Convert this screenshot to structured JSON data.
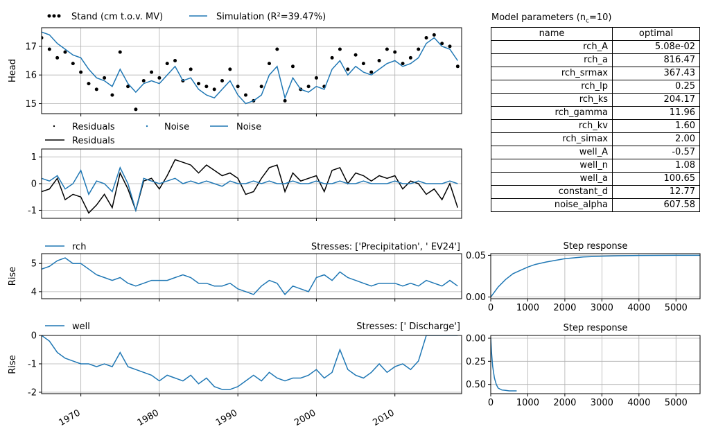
{
  "colors": {
    "simulation": "#1f77b4",
    "observed": "#000000",
    "grid": "#b0b0b0"
  },
  "chart_data": [
    {
      "id": "head",
      "type": "scatter+line",
      "ylabel": "Head",
      "ylim": [
        14.65,
        17.65
      ],
      "xlim": [
        1965.0,
        2018.5
      ],
      "yticks": [
        15,
        16,
        17
      ],
      "grid": true,
      "legend": [
        {
          "label": "Stand (cm t.o.v. MV)",
          "marker": "dots"
        },
        {
          "label": "Simulation (R²=39.47%)",
          "marker": "line"
        }
      ],
      "series": [
        {
          "name": "Stand (cm t.o.v. MV)",
          "kind": "points",
          "x": [
            1965,
            1966,
            1967,
            1968,
            1969,
            1970,
            1971,
            1972,
            1973,
            1974,
            1975,
            1976,
            1977,
            1978,
            1979,
            1980,
            1981,
            1982,
            1983,
            1984,
            1985,
            1986,
            1987,
            1988,
            1989,
            1990,
            1991,
            1992,
            1993,
            1994,
            1995,
            1996,
            1997,
            1998,
            1999,
            2000,
            2001,
            2002,
            2003,
            2004,
            2005,
            2006,
            2007,
            2008,
            2009,
            2010,
            2011,
            2012,
            2013,
            2014,
            2015,
            2016,
            2017,
            2018
          ],
          "y": [
            17.3,
            16.9,
            16.6,
            16.8,
            16.4,
            16.1,
            15.7,
            15.5,
            15.9,
            15.3,
            16.8,
            15.6,
            14.8,
            15.8,
            16.1,
            15.9,
            16.4,
            16.5,
            15.8,
            16.2,
            15.7,
            15.6,
            15.5,
            15.8,
            16.2,
            15.6,
            15.3,
            15.1,
            15.6,
            16.4,
            16.9,
            15.1,
            16.3,
            15.5,
            15.6,
            15.9,
            15.6,
            16.6,
            16.9,
            16.2,
            16.7,
            16.4,
            16.1,
            16.5,
            16.9,
            16.8,
            16.4,
            16.6,
            16.9,
            17.3,
            17.4,
            17.1,
            17.0,
            16.3
          ]
        },
        {
          "name": "Simulation",
          "kind": "line",
          "x": [
            1965,
            1966,
            1967,
            1968,
            1969,
            1970,
            1971,
            1972,
            1973,
            1974,
            1975,
            1976,
            1977,
            1978,
            1979,
            1980,
            1981,
            1982,
            1983,
            1984,
            1985,
            1986,
            1987,
            1988,
            1989,
            1990,
            1991,
            1992,
            1993,
            1994,
            1995,
            1996,
            1997,
            1998,
            1999,
            2000,
            2001,
            2002,
            2003,
            2004,
            2005,
            2006,
            2007,
            2008,
            2009,
            2010,
            2011,
            2012,
            2013,
            2014,
            2015,
            2016,
            2017,
            2018
          ],
          "y": [
            17.5,
            17.4,
            17.1,
            16.9,
            16.7,
            16.6,
            16.2,
            15.9,
            15.8,
            15.6,
            16.2,
            15.7,
            15.4,
            15.7,
            15.8,
            15.7,
            16.0,
            16.3,
            15.8,
            15.9,
            15.5,
            15.3,
            15.2,
            15.5,
            15.8,
            15.3,
            15.0,
            15.1,
            15.3,
            16.0,
            16.3,
            15.2,
            15.9,
            15.5,
            15.4,
            15.6,
            15.5,
            16.2,
            16.5,
            16.0,
            16.3,
            16.1,
            16.0,
            16.2,
            16.4,
            16.5,
            16.3,
            16.4,
            16.6,
            17.1,
            17.3,
            17.0,
            16.9,
            16.5
          ]
        }
      ]
    },
    {
      "id": "residuals",
      "type": "line",
      "ylim": [
        -1.3,
        1.3
      ],
      "xlim": [
        1965.0,
        2018.5
      ],
      "yticks": [
        -1,
        0,
        1
      ],
      "grid": true,
      "legend": [
        {
          "label": "Residuals",
          "marker": "dot",
          "color": "#000000"
        },
        {
          "label": "Noise",
          "marker": "dot",
          "color": "#1f77b4"
        },
        {
          "label": "Noise",
          "marker": "line",
          "color": "#1f77b4"
        },
        {
          "label": "Residuals",
          "marker": "line",
          "color": "#000000"
        }
      ],
      "series": [
        {
          "name": "Residuals",
          "x": [
            1965,
            1966,
            1967,
            1968,
            1969,
            1970,
            1971,
            1972,
            1973,
            1974,
            1975,
            1976,
            1977,
            1978,
            1979,
            1980,
            1981,
            1982,
            1983,
            1984,
            1985,
            1986,
            1987,
            1988,
            1989,
            1990,
            1991,
            1992,
            1993,
            1994,
            1995,
            1996,
            1997,
            1998,
            1999,
            2000,
            2001,
            2002,
            2003,
            2004,
            2005,
            2006,
            2007,
            2008,
            2009,
            2010,
            2011,
            2012,
            2013,
            2014,
            2015,
            2016,
            2017,
            2018
          ],
          "y": [
            -0.3,
            -0.2,
            0.2,
            -0.6,
            -0.4,
            -0.5,
            -1.1,
            -0.8,
            -0.4,
            -0.9,
            0.4,
            -0.2,
            -1.0,
            0.1,
            0.2,
            -0.2,
            0.3,
            0.9,
            0.8,
            0.7,
            0.4,
            0.7,
            0.5,
            0.3,
            0.4,
            0.2,
            -0.4,
            -0.3,
            0.2,
            0.6,
            0.7,
            -0.3,
            0.4,
            0.1,
            0.2,
            0.3,
            -0.3,
            0.5,
            0.6,
            0.0,
            0.4,
            0.3,
            0.1,
            0.3,
            0.2,
            0.3,
            -0.2,
            0.1,
            0.0,
            -0.4,
            -0.2,
            -0.6,
            0.0,
            -0.9
          ]
        },
        {
          "name": "Noise",
          "x": [
            1965,
            1966,
            1967,
            1968,
            1969,
            1970,
            1971,
            1972,
            1973,
            1974,
            1975,
            1976,
            1977,
            1978,
            1979,
            1980,
            1981,
            1982,
            1983,
            1984,
            1985,
            1986,
            1987,
            1988,
            1989,
            1990,
            1991,
            1992,
            1993,
            1994,
            1995,
            1996,
            1997,
            1998,
            1999,
            2000,
            2001,
            2002,
            2003,
            2004,
            2005,
            2006,
            2007,
            2008,
            2009,
            2010,
            2011,
            2012,
            2013,
            2014,
            2015,
            2016,
            2017,
            2018
          ],
          "y": [
            0.2,
            0.1,
            0.3,
            -0.2,
            0.0,
            0.5,
            -0.4,
            0.1,
            0.0,
            -0.3,
            0.6,
            0.0,
            -1.0,
            0.2,
            0.1,
            0.0,
            0.1,
            0.2,
            0.0,
            0.1,
            0.0,
            0.1,
            0.0,
            -0.1,
            0.1,
            0.0,
            0.0,
            0.1,
            0.0,
            0.1,
            0.0,
            0.0,
            0.1,
            0.0,
            0.0,
            0.1,
            0.0,
            0.0,
            0.1,
            0.0,
            0.0,
            0.1,
            0.0,
            0.0,
            0.0,
            0.1,
            0.0,
            0.0,
            0.1,
            0.0,
            0.0,
            0.0,
            0.1,
            0.0
          ]
        }
      ]
    },
    {
      "id": "rch",
      "type": "line",
      "ylabel": "Rise",
      "title_right": "Stresses: ['Precipitation', ' EV24']",
      "ylim": [
        3.75,
        5.35
      ],
      "xlim": [
        1965.0,
        2018.5
      ],
      "yticks": [
        4,
        5
      ],
      "grid": true,
      "legend": [
        {
          "label": "rch",
          "marker": "line"
        }
      ],
      "series": [
        {
          "name": "rch",
          "x": [
            1965,
            1966,
            1967,
            1968,
            1969,
            1970,
            1971,
            1972,
            1973,
            1974,
            1975,
            1976,
            1977,
            1978,
            1979,
            1980,
            1981,
            1982,
            1983,
            1984,
            1985,
            1986,
            1987,
            1988,
            1989,
            1990,
            1991,
            1992,
            1993,
            1994,
            1995,
            1996,
            1997,
            1998,
            1999,
            2000,
            2001,
            2002,
            2003,
            2004,
            2005,
            2006,
            2007,
            2008,
            2009,
            2010,
            2011,
            2012,
            2013,
            2014,
            2015,
            2016,
            2017,
            2018
          ],
          "y": [
            4.8,
            4.9,
            5.1,
            5.2,
            5.0,
            5.0,
            4.8,
            4.6,
            4.5,
            4.4,
            4.5,
            4.3,
            4.2,
            4.3,
            4.4,
            4.4,
            4.4,
            4.5,
            4.6,
            4.5,
            4.3,
            4.3,
            4.2,
            4.2,
            4.3,
            4.1,
            4.0,
            3.9,
            4.2,
            4.4,
            4.3,
            3.9,
            4.2,
            4.1,
            4.0,
            4.5,
            4.6,
            4.4,
            4.7,
            4.5,
            4.4,
            4.3,
            4.2,
            4.3,
            4.3,
            4.3,
            4.2,
            4.3,
            4.2,
            4.4,
            4.3,
            4.2,
            4.4,
            4.2
          ]
        }
      ]
    },
    {
      "id": "well",
      "type": "line",
      "ylabel": "Rise",
      "title_right": "Stresses: [' Discharge']",
      "ylim": [
        -2.05,
        0.0
      ],
      "xlim": [
        1965.0,
        2018.5
      ],
      "yticks": [
        -2,
        -1,
        0
      ],
      "xticks": [
        1970,
        1980,
        1990,
        2000,
        2010
      ],
      "grid": true,
      "legend": [
        {
          "label": "well",
          "marker": "line"
        }
      ],
      "series": [
        {
          "name": "well",
          "x": [
            1965,
            1966,
            1967,
            1968,
            1969,
            1970,
            1971,
            1972,
            1973,
            1974,
            1975,
            1976,
            1977,
            1978,
            1979,
            1980,
            1981,
            1982,
            1983,
            1984,
            1985,
            1986,
            1987,
            1988,
            1989,
            1990,
            1991,
            1992,
            1993,
            1994,
            1995,
            1996,
            1997,
            1998,
            1999,
            2000,
            2001,
            2002,
            2003,
            2004,
            2005,
            2006,
            2007,
            2008,
            2009,
            2010,
            2011,
            2012,
            2013,
            2014,
            2015,
            2016,
            2017,
            2018
          ],
          "y": [
            0.0,
            -0.2,
            -0.6,
            -0.8,
            -0.9,
            -1.0,
            -1.0,
            -1.1,
            -1.0,
            -1.1,
            -0.6,
            -1.1,
            -1.2,
            -1.3,
            -1.4,
            -1.6,
            -1.4,
            -1.5,
            -1.6,
            -1.4,
            -1.7,
            -1.5,
            -1.8,
            -1.9,
            -1.9,
            -1.8,
            -1.6,
            -1.4,
            -1.6,
            -1.3,
            -1.5,
            -1.6,
            -1.5,
            -1.5,
            -1.4,
            -1.2,
            -1.5,
            -1.3,
            -0.5,
            -1.2,
            -1.4,
            -1.5,
            -1.3,
            -1.0,
            -1.3,
            -1.1,
            -1.0,
            -1.2,
            -0.9,
            0.0,
            0.0,
            0.0,
            0.0,
            0.0
          ]
        }
      ]
    },
    {
      "id": "rch_step",
      "type": "line",
      "title": "Step response",
      "xlim": [
        0,
        5650
      ],
      "ylim": [
        -0.002,
        0.052
      ],
      "yticks": [
        0.0,
        0.05
      ],
      "ytick_labels": [
        "0.00",
        "0.05"
      ],
      "xticks": [
        0,
        1000,
        2000,
        3000,
        4000,
        5000
      ],
      "grid": true,
      "series": [
        {
          "name": "rch step",
          "x": [
            0,
            100,
            200,
            400,
            600,
            800,
            1000,
            1200,
            1500,
            2000,
            2500,
            3000,
            3500,
            4000,
            5000,
            5650
          ],
          "y": [
            0.0,
            0.006,
            0.012,
            0.021,
            0.028,
            0.032,
            0.036,
            0.039,
            0.042,
            0.046,
            0.048,
            0.049,
            0.0495,
            0.0498,
            0.05,
            0.05
          ]
        }
      ]
    },
    {
      "id": "well_step",
      "type": "line",
      "title": "Step response",
      "xlim": [
        0,
        5650
      ],
      "ylim": [
        -0.6,
        0.03
      ],
      "yticks": [
        0.0,
        -0.25,
        -0.5
      ],
      "ytick_labels": [
        "0.00",
        "0.25",
        "0.50"
      ],
      "xticks": [
        0,
        1000,
        2000,
        3000,
        4000,
        5000
      ],
      "grid": true,
      "series": [
        {
          "name": "well step",
          "x": [
            0,
            20,
            50,
            100,
            150,
            200,
            300,
            400,
            500,
            600,
            700
          ],
          "y": [
            0.0,
            -0.15,
            -0.3,
            -0.43,
            -0.5,
            -0.54,
            -0.56,
            -0.565,
            -0.57,
            -0.57,
            -0.57
          ]
        }
      ]
    }
  ],
  "params": {
    "title": "Model parameters (n",
    "title_sub": "c",
    "title_end": "=10)",
    "columns": [
      "name",
      "optimal"
    ],
    "rows": [
      [
        "rch_A",
        "5.08e-02"
      ],
      [
        "rch_a",
        "816.47"
      ],
      [
        "rch_srmax",
        "367.43"
      ],
      [
        "rch_lp",
        "0.25"
      ],
      [
        "rch_ks",
        "204.17"
      ],
      [
        "rch_gamma",
        "11.96"
      ],
      [
        "rch_kv",
        "1.60"
      ],
      [
        "rch_simax",
        "2.00"
      ],
      [
        "well_A",
        "-0.57"
      ],
      [
        "well_n",
        "1.08"
      ],
      [
        "well_a",
        "100.65"
      ],
      [
        "constant_d",
        "12.77"
      ],
      [
        "noise_alpha",
        "607.58"
      ]
    ]
  }
}
